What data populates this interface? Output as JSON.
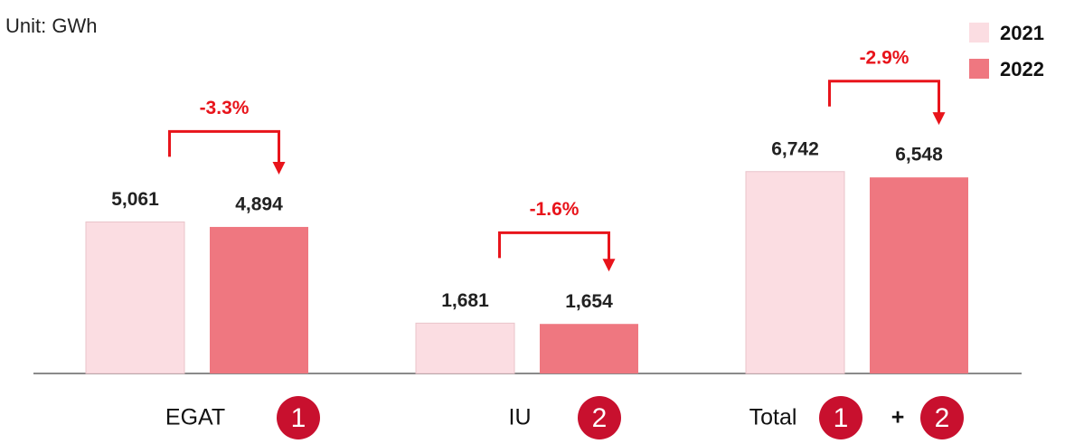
{
  "chart_data": {
    "type": "bar",
    "subtitle": "Unit: GWh",
    "categories": [
      "EGAT",
      "IU",
      "Total"
    ],
    "category_badges": [
      [
        "1"
      ],
      [
        "2"
      ],
      [
        "1",
        "+",
        "2"
      ]
    ],
    "series": [
      {
        "name": "2021",
        "color": "#fbdde2",
        "values": [
          5061,
          1681,
          6742
        ],
        "value_labels": [
          "5,061",
          "1,681",
          "6,742"
        ]
      },
      {
        "name": "2022",
        "color": "#ef7780",
        "values": [
          4894,
          1654,
          6548
        ],
        "value_labels": [
          "4,894",
          "1,654",
          "6,548"
        ]
      }
    ],
    "annotations": [
      "-3.3%",
      "-1.6%",
      "-2.9%"
    ],
    "annotation_color": "#e8141b",
    "badge_color": "#c8102e",
    "legend": "top-right"
  }
}
